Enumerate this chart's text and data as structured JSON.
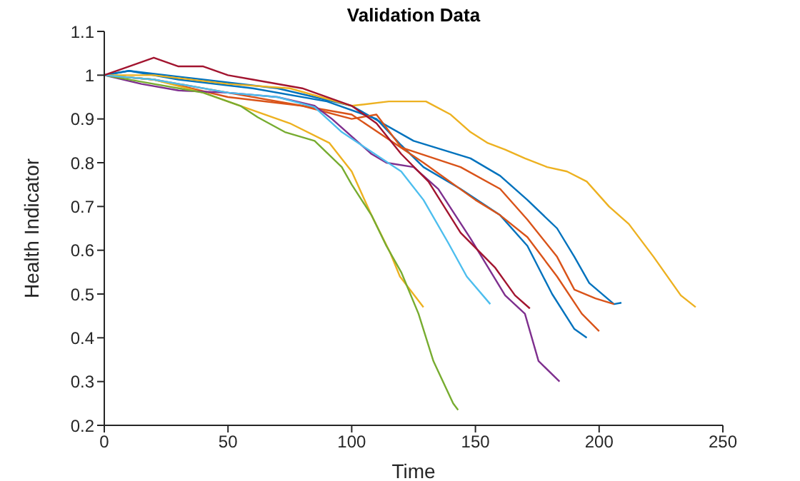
{
  "chart_data": {
    "type": "line",
    "title": "Validation Data",
    "xlabel": "Time",
    "ylabel": "Health Indicator",
    "xlim": [
      0,
      250
    ],
    "xticks": [
      0,
      50,
      100,
      150,
      200,
      250
    ],
    "ylim": [
      0.2,
      1.1
    ],
    "yticks": [
      0.2,
      0.3,
      0.4,
      0.5,
      0.6,
      0.7,
      0.8,
      0.9,
      1,
      1.1
    ],
    "grid": false,
    "marker": "none",
    "line_style": "solid",
    "series": [
      {
        "color": "#0072bd",
        "x": [
          0,
          10,
          30,
          60,
          90,
          110,
          120,
          129,
          144,
          160,
          171,
          181,
          190,
          195
        ],
        "values": [
          1,
          1.01,
          0.99,
          0.97,
          0.94,
          0.9,
          0.84,
          0.79,
          0.74,
          0.68,
          0.61,
          0.5,
          0.42,
          0.4
        ]
      },
      {
        "color": "#0072bd",
        "x": [
          0,
          10,
          40,
          70,
          100,
          125,
          148,
          160,
          171,
          183,
          190,
          196,
          206,
          209
        ],
        "values": [
          1,
          1.01,
          0.99,
          0.97,
          0.93,
          0.85,
          0.81,
          0.77,
          0.715,
          0.65,
          0.585,
          0.525,
          0.477,
          0.48
        ]
      },
      {
        "color": "#d95319",
        "x": [
          0,
          20,
          50,
          80,
          100,
          129,
          150,
          160,
          171,
          183,
          193,
          200
        ],
        "values": [
          1,
          0.99,
          0.96,
          0.93,
          0.91,
          0.8,
          0.715,
          0.68,
          0.63,
          0.54,
          0.455,
          0.415
        ]
      },
      {
        "color": "#d95319",
        "x": [
          0,
          20,
          50,
          80,
          100,
          110,
          120,
          144,
          160,
          171,
          183,
          190,
          198.5,
          206
        ],
        "values": [
          1,
          0.99,
          0.95,
          0.93,
          0.9,
          0.91,
          0.835,
          0.79,
          0.74,
          0.67,
          0.585,
          0.51,
          0.49,
          0.477
        ]
      },
      {
        "color": "#edb120",
        "x": [
          0,
          20,
          50,
          75,
          100,
          115,
          130,
          140,
          148,
          155,
          162,
          170,
          179,
          187,
          195,
          204,
          212,
          222,
          233,
          239
        ],
        "values": [
          1,
          1,
          0.98,
          0.97,
          0.93,
          0.94,
          0.94,
          0.91,
          0.87,
          0.845,
          0.83,
          0.81,
          0.79,
          0.78,
          0.757,
          0.7,
          0.66,
          0.585,
          0.497,
          0.47
        ]
      },
      {
        "color": "#edb120",
        "x": [
          0,
          20,
          40,
          55,
          75,
          91,
          100,
          108,
          115.5,
          119.5,
          129
        ],
        "values": [
          1,
          0.99,
          0.96,
          0.93,
          0.89,
          0.845,
          0.78,
          0.68,
          0.595,
          0.54,
          0.47
        ]
      },
      {
        "color": "#7e2f8e",
        "x": [
          0,
          15,
          30,
          50,
          70,
          85,
          92,
          108,
          114,
          125,
          135,
          148,
          162,
          170,
          175.5,
          184
        ],
        "values": [
          1,
          0.98,
          0.965,
          0.96,
          0.95,
          0.93,
          0.9,
          0.82,
          0.8,
          0.79,
          0.74,
          0.627,
          0.497,
          0.455,
          0.347,
          0.3
        ]
      },
      {
        "color": "#77ac30",
        "x": [
          0,
          20,
          40,
          55,
          62,
          73,
          85,
          96,
          100,
          108,
          114,
          120,
          127,
          133,
          141,
          143
        ],
        "values": [
          1,
          0.98,
          0.96,
          0.93,
          0.904,
          0.87,
          0.85,
          0.79,
          0.75,
          0.68,
          0.61,
          0.55,
          0.455,
          0.347,
          0.25,
          0.235
        ]
      },
      {
        "color": "#4dbeee",
        "x": [
          0,
          20,
          50,
          70,
          85,
          96,
          104,
          120,
          129,
          139,
          146.5,
          156
        ],
        "values": [
          1,
          0.99,
          0.96,
          0.95,
          0.927,
          0.87,
          0.84,
          0.78,
          0.715,
          0.617,
          0.54,
          0.477
        ]
      },
      {
        "color": "#a2142f",
        "x": [
          0,
          10,
          20,
          30,
          40,
          50,
          60,
          80,
          100,
          110,
          120,
          131,
          144,
          158,
          166,
          172
        ],
        "values": [
          1,
          1.02,
          1.04,
          1.02,
          1.02,
          1,
          0.99,
          0.97,
          0.93,
          0.89,
          0.82,
          0.757,
          0.64,
          0.56,
          0.497,
          0.467
        ]
      }
    ]
  }
}
